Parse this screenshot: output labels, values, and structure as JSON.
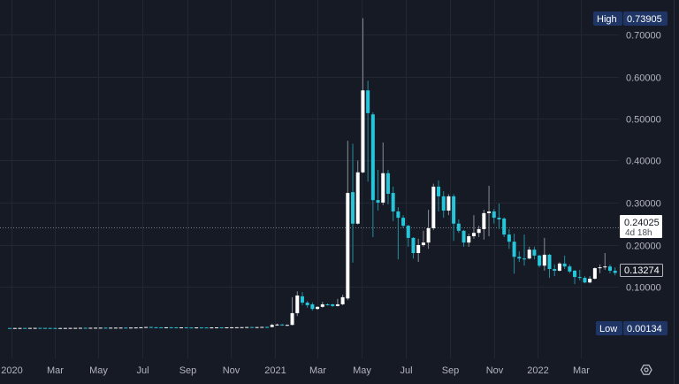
{
  "chart_data": {
    "type": "candlestick",
    "interval": "weekly",
    "ylim": [
      0,
      0.74
    ],
    "y_ticks": [
      "0.10000",
      "0.20000",
      "0.30000",
      "0.40000",
      "0.50000",
      "0.60000",
      "0.70000"
    ],
    "x_ticks": [
      {
        "label": "2020",
        "date": "2020-01-01"
      },
      {
        "label": "Mar",
        "date": "2020-03-01"
      },
      {
        "label": "May",
        "date": "2020-05-01"
      },
      {
        "label": "Jul",
        "date": "2020-07-01"
      },
      {
        "label": "Sep",
        "date": "2020-09-01"
      },
      {
        "label": "Nov",
        "date": "2020-11-01"
      },
      {
        "label": "2021",
        "date": "2021-01-01"
      },
      {
        "label": "Mar",
        "date": "2021-03-01"
      },
      {
        "label": "May",
        "date": "2021-05-01"
      },
      {
        "label": "Jul",
        "date": "2021-07-01"
      },
      {
        "label": "Sep",
        "date": "2021-09-01"
      },
      {
        "label": "Nov",
        "date": "2021-11-01"
      },
      {
        "label": "2022",
        "date": "2022-01-01"
      },
      {
        "label": "Mar",
        "date": "2022-03-01"
      }
    ],
    "grid": true,
    "colors": {
      "background": "#161a25",
      "up": "#ffffff",
      "down": "#26c6da",
      "up_wick": "#8a8d96",
      "down_wick": "#1f8f9e",
      "grid": "#232734",
      "badge": "#1e3566"
    },
    "high": {
      "label": "High",
      "value": "0.73905"
    },
    "low": {
      "label": "Low",
      "value": "0.00134"
    },
    "last_price": "0.13274",
    "marker": {
      "value": "0.24025",
      "countdown": "4d 18h"
    },
    "candles_fields": [
      "date",
      "open",
      "high",
      "low",
      "close"
    ],
    "candles": [
      [
        "2019-12-30",
        0.0016,
        0.0018,
        0.00134,
        0.0015
      ],
      [
        "2020-01-06",
        0.0015,
        0.0018,
        0.0014,
        0.0016
      ],
      [
        "2020-01-13",
        0.0016,
        0.0019,
        0.0015,
        0.0017
      ],
      [
        "2020-01-20",
        0.0017,
        0.0019,
        0.0015,
        0.0016
      ],
      [
        "2020-01-27",
        0.0016,
        0.0019,
        0.0015,
        0.0018
      ],
      [
        "2020-02-03",
        0.0018,
        0.0021,
        0.0016,
        0.0019
      ],
      [
        "2020-02-10",
        0.0019,
        0.0022,
        0.0017,
        0.0018
      ],
      [
        "2020-02-17",
        0.0018,
        0.002,
        0.0016,
        0.0017
      ],
      [
        "2020-02-24",
        0.0017,
        0.0019,
        0.0015,
        0.0016
      ],
      [
        "2020-03-02",
        0.0016,
        0.0018,
        0.0014,
        0.0015
      ],
      [
        "2020-03-09",
        0.0015,
        0.0017,
        0.0014,
        0.0016
      ],
      [
        "2020-03-16",
        0.0016,
        0.0018,
        0.0015,
        0.0017
      ],
      [
        "2020-03-23",
        0.0017,
        0.0019,
        0.0015,
        0.0018
      ],
      [
        "2020-03-30",
        0.0018,
        0.002,
        0.0016,
        0.0019
      ],
      [
        "2020-04-06",
        0.0019,
        0.0022,
        0.0018,
        0.0021
      ],
      [
        "2020-04-13",
        0.0021,
        0.0023,
        0.0019,
        0.002
      ],
      [
        "2020-04-20",
        0.002,
        0.0023,
        0.0019,
        0.0022
      ],
      [
        "2020-04-27",
        0.0022,
        0.0025,
        0.002,
        0.0023
      ],
      [
        "2020-05-04",
        0.0023,
        0.0026,
        0.0021,
        0.0024
      ],
      [
        "2020-05-11",
        0.0024,
        0.0026,
        0.0021,
        0.0022
      ],
      [
        "2020-05-18",
        0.0022,
        0.0025,
        0.0021,
        0.0024
      ],
      [
        "2020-05-25",
        0.0024,
        0.0027,
        0.0022,
        0.0025
      ],
      [
        "2020-06-01",
        0.0025,
        0.0028,
        0.0023,
        0.0026
      ],
      [
        "2020-06-08",
        0.0026,
        0.0029,
        0.0024,
        0.0025
      ],
      [
        "2020-06-15",
        0.0025,
        0.0028,
        0.0023,
        0.0027
      ],
      [
        "2020-06-22",
        0.0027,
        0.0031,
        0.0025,
        0.0029
      ],
      [
        "2020-06-29",
        0.0029,
        0.0034,
        0.0027,
        0.0033
      ],
      [
        "2020-07-06",
        0.0033,
        0.0042,
        0.003,
        0.004
      ],
      [
        "2020-07-13",
        0.004,
        0.0046,
        0.0031,
        0.0034
      ],
      [
        "2020-07-20",
        0.0034,
        0.0037,
        0.003,
        0.0032
      ],
      [
        "2020-07-27",
        0.0032,
        0.0035,
        0.0029,
        0.0031
      ],
      [
        "2020-08-03",
        0.0031,
        0.0034,
        0.0028,
        0.0033
      ],
      [
        "2020-08-10",
        0.0033,
        0.0036,
        0.003,
        0.0032
      ],
      [
        "2020-08-17",
        0.0032,
        0.0035,
        0.0029,
        0.003
      ],
      [
        "2020-08-24",
        0.003,
        0.0033,
        0.0028,
        0.0031
      ],
      [
        "2020-08-31",
        0.0031,
        0.0034,
        0.0028,
        0.0029
      ],
      [
        "2020-09-07",
        0.0029,
        0.0032,
        0.0026,
        0.0028
      ],
      [
        "2020-09-14",
        0.0028,
        0.0031,
        0.0026,
        0.003
      ],
      [
        "2020-09-21",
        0.003,
        0.0032,
        0.0027,
        0.0029
      ],
      [
        "2020-09-28",
        0.0029,
        0.0031,
        0.0026,
        0.0028
      ],
      [
        "2020-10-05",
        0.0028,
        0.0031,
        0.0026,
        0.003
      ],
      [
        "2020-10-12",
        0.003,
        0.0033,
        0.0028,
        0.0031
      ],
      [
        "2020-10-19",
        0.0031,
        0.0034,
        0.0029,
        0.003
      ],
      [
        "2020-10-26",
        0.003,
        0.0033,
        0.0028,
        0.0032
      ],
      [
        "2020-11-02",
        0.0032,
        0.0035,
        0.003,
        0.0033
      ],
      [
        "2020-11-09",
        0.0033,
        0.0036,
        0.0031,
        0.0034
      ],
      [
        "2020-11-16",
        0.0034,
        0.0038,
        0.0032,
        0.0036
      ],
      [
        "2020-11-23",
        0.0036,
        0.0042,
        0.0033,
        0.0039
      ],
      [
        "2020-11-30",
        0.0039,
        0.0044,
        0.0035,
        0.0037
      ],
      [
        "2020-12-07",
        0.0037,
        0.0041,
        0.0034,
        0.0038
      ],
      [
        "2020-12-14",
        0.0038,
        0.0045,
        0.0035,
        0.0042
      ],
      [
        "2020-12-21",
        0.0042,
        0.005,
        0.0038,
        0.004
      ],
      [
        "2020-12-28",
        0.004,
        0.012,
        0.003,
        0.009
      ],
      [
        "2021-01-04",
        0.009,
        0.012,
        0.007,
        0.01
      ],
      [
        "2021-01-11",
        0.01,
        0.011,
        0.007,
        0.008
      ],
      [
        "2021-01-18",
        0.008,
        0.01,
        0.007,
        0.009
      ],
      [
        "2021-01-25",
        0.009,
        0.075,
        0.008,
        0.037
      ],
      [
        "2021-02-01",
        0.037,
        0.089,
        0.03,
        0.079
      ],
      [
        "2021-02-08",
        0.077,
        0.087,
        0.056,
        0.062
      ],
      [
        "2021-02-15",
        0.062,
        0.066,
        0.05,
        0.056
      ],
      [
        "2021-02-22",
        0.058,
        0.062,
        0.043,
        0.047
      ],
      [
        "2021-03-01",
        0.047,
        0.053,
        0.045,
        0.052
      ],
      [
        "2021-03-08",
        0.052,
        0.064,
        0.05,
        0.058
      ],
      [
        "2021-03-15",
        0.058,
        0.06,
        0.055,
        0.057
      ],
      [
        "2021-03-22",
        0.058,
        0.059,
        0.052,
        0.054
      ],
      [
        "2021-03-29",
        0.054,
        0.071,
        0.053,
        0.058
      ],
      [
        "2021-04-05",
        0.058,
        0.081,
        0.056,
        0.075
      ],
      [
        "2021-04-12",
        0.072,
        0.447,
        0.068,
        0.323
      ],
      [
        "2021-04-19",
        0.325,
        0.44,
        0.157,
        0.25
      ],
      [
        "2021-04-26",
        0.25,
        0.4,
        0.248,
        0.372
      ],
      [
        "2021-05-03",
        0.372,
        0.73905,
        0.37,
        0.567
      ],
      [
        "2021-05-10",
        0.567,
        0.59,
        0.35,
        0.513
      ],
      [
        "2021-05-17",
        0.51,
        0.515,
        0.218,
        0.306
      ],
      [
        "2021-05-24",
        0.306,
        0.378,
        0.281,
        0.3
      ],
      [
        "2021-05-31",
        0.3,
        0.443,
        0.294,
        0.37
      ],
      [
        "2021-06-07",
        0.37,
        0.378,
        0.296,
        0.321
      ],
      [
        "2021-06-14",
        0.323,
        0.338,
        0.256,
        0.279
      ],
      [
        "2021-06-21",
        0.279,
        0.289,
        0.165,
        0.264
      ],
      [
        "2021-06-28",
        0.264,
        0.27,
        0.239,
        0.245
      ],
      [
        "2021-07-05",
        0.245,
        0.247,
        0.195,
        0.216
      ],
      [
        "2021-07-12",
        0.216,
        0.218,
        0.167,
        0.18
      ],
      [
        "2021-07-19",
        0.18,
        0.214,
        0.159,
        0.199
      ],
      [
        "2021-07-26",
        0.199,
        0.233,
        0.195,
        0.205
      ],
      [
        "2021-08-02",
        0.205,
        0.283,
        0.19,
        0.239
      ],
      [
        "2021-08-09",
        0.239,
        0.345,
        0.235,
        0.338
      ],
      [
        "2021-08-16",
        0.338,
        0.353,
        0.279,
        0.315
      ],
      [
        "2021-08-23",
        0.315,
        0.327,
        0.264,
        0.281
      ],
      [
        "2021-08-30",
        0.281,
        0.32,
        0.27,
        0.315
      ],
      [
        "2021-09-06",
        0.315,
        0.32,
        0.209,
        0.25
      ],
      [
        "2021-09-13",
        0.25,
        0.26,
        0.228,
        0.233
      ],
      [
        "2021-09-20",
        0.233,
        0.235,
        0.195,
        0.205
      ],
      [
        "2021-09-27",
        0.205,
        0.226,
        0.195,
        0.22
      ],
      [
        "2021-10-04",
        0.22,
        0.27,
        0.214,
        0.228
      ],
      [
        "2021-10-11",
        0.228,
        0.245,
        0.218,
        0.237
      ],
      [
        "2021-10-18",
        0.237,
        0.283,
        0.212,
        0.275
      ],
      [
        "2021-10-25",
        0.275,
        0.34,
        0.22,
        0.279
      ],
      [
        "2021-11-01",
        0.279,
        0.285,
        0.25,
        0.264
      ],
      [
        "2021-11-08",
        0.264,
        0.298,
        0.237,
        0.26
      ],
      [
        "2021-11-15",
        0.262,
        0.265,
        0.218,
        0.224
      ],
      [
        "2021-11-22",
        0.224,
        0.237,
        0.19,
        0.207
      ],
      [
        "2021-11-29",
        0.207,
        0.226,
        0.131,
        0.171
      ],
      [
        "2021-12-06",
        0.171,
        0.184,
        0.159,
        0.167
      ],
      [
        "2021-12-13",
        0.167,
        0.224,
        0.15,
        0.166
      ],
      [
        "2021-12-20",
        0.167,
        0.195,
        0.165,
        0.188
      ],
      [
        "2021-12-27",
        0.188,
        0.195,
        0.165,
        0.174
      ],
      [
        "2022-01-03",
        0.174,
        0.176,
        0.146,
        0.15
      ],
      [
        "2022-01-10",
        0.15,
        0.216,
        0.138,
        0.176
      ],
      [
        "2022-01-17",
        0.176,
        0.178,
        0.121,
        0.142
      ],
      [
        "2022-01-24",
        0.142,
        0.153,
        0.125,
        0.138
      ],
      [
        "2022-01-31",
        0.138,
        0.158,
        0.136,
        0.155
      ],
      [
        "2022-02-07",
        0.155,
        0.174,
        0.142,
        0.148
      ],
      [
        "2022-02-14",
        0.148,
        0.153,
        0.132,
        0.136
      ],
      [
        "2022-02-21",
        0.138,
        0.14,
        0.106,
        0.123
      ],
      [
        "2022-02-28",
        0.123,
        0.14,
        0.115,
        0.121
      ],
      [
        "2022-03-07",
        0.121,
        0.125,
        0.108,
        0.11
      ],
      [
        "2022-03-14",
        0.11,
        0.125,
        0.108,
        0.119
      ],
      [
        "2022-03-21",
        0.119,
        0.146,
        0.117,
        0.144
      ],
      [
        "2022-03-28",
        0.144,
        0.153,
        0.132,
        0.146
      ],
      [
        "2022-04-04",
        0.146,
        0.18,
        0.14,
        0.148
      ],
      [
        "2022-04-11",
        0.148,
        0.153,
        0.132,
        0.138
      ],
      [
        "2022-04-18",
        0.138,
        0.146,
        0.127,
        0.13274
      ]
    ]
  },
  "settings_icon": "gear-icon"
}
